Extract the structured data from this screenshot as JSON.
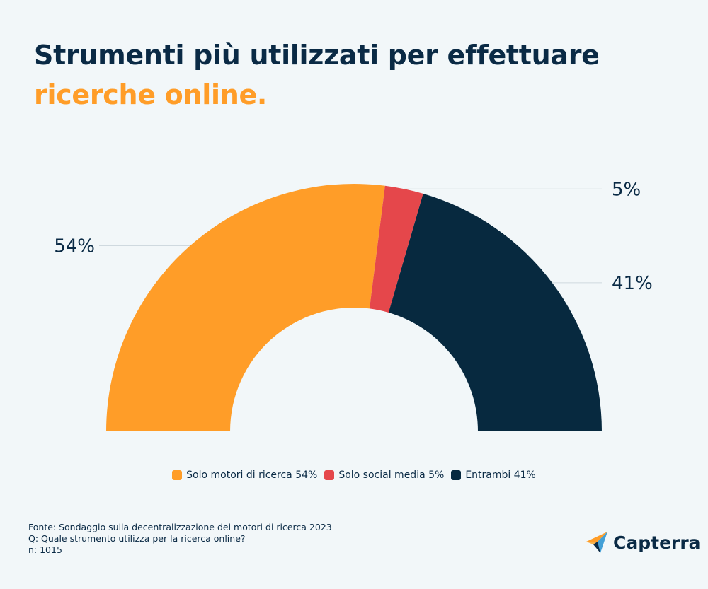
{
  "header": {
    "title_line1": "Strumenti più utilizzati per effettuare",
    "title_line2": "ricerche online."
  },
  "chart_data": {
    "type": "pie",
    "variant": "half-donut",
    "title": "Strumenti più utilizzati per effettuare ricerche online.",
    "slices": [
      {
        "name": "Solo motori di ricerca",
        "value": 54,
        "label": "54%",
        "color": "#ff9d28",
        "legend_label": "Solo motori di ricerca 54%"
      },
      {
        "name": "Solo social media",
        "value": 5,
        "label": "5%",
        "color": "#e5474b",
        "legend_label": "Solo social media 5%"
      },
      {
        "name": "Entrambi",
        "value": 41,
        "label": "41%",
        "color": "#07293f",
        "legend_label": "Entrambi 41%"
      }
    ],
    "legend_position": "bottom-center"
  },
  "footer": {
    "source": "Fonte: Sondaggio sulla decentralizzazione dei motori di ricerca 2023",
    "question": "Q: Quale strumento utilizza per la ricerca online?",
    "sample": "n: 1015"
  },
  "brand": {
    "name": "Capterra",
    "icon": "capterra-arrow-icon"
  }
}
